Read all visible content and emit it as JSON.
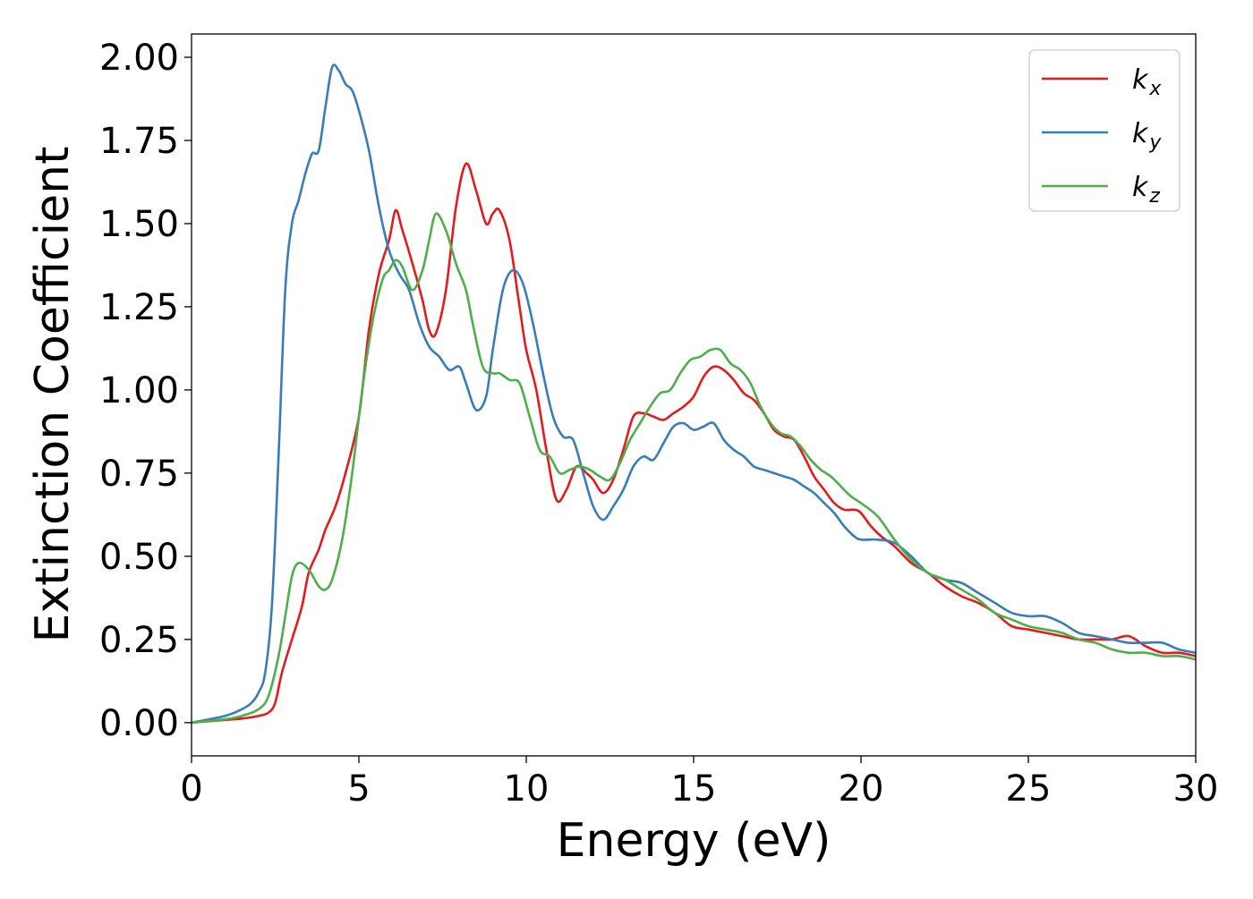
{
  "chart_data": {
    "type": "line",
    "xlabel": "Energy (eV)",
    "ylabel": "Extinction Coefficient",
    "xlim": [
      0,
      30
    ],
    "ylim": [
      -0.1,
      2.07
    ],
    "xticks": [
      0,
      5,
      10,
      15,
      20,
      25,
      30
    ],
    "yticks": [
      0.0,
      0.25,
      0.5,
      0.75,
      1.0,
      1.25,
      1.5,
      1.75,
      2.0
    ],
    "xtick_labels": [
      "0",
      "5",
      "10",
      "15",
      "20",
      "25",
      "30"
    ],
    "ytick_labels": [
      "0.00",
      "0.25",
      "0.50",
      "0.75",
      "1.00",
      "1.25",
      "1.50",
      "1.75",
      "2.00"
    ],
    "grid": false,
    "legend_position": "top-right",
    "series": [
      {
        "name": "k",
        "subscript": "x",
        "color": "#e41a1c",
        "x": [
          0,
          1,
          1.5,
          2,
          2.3,
          2.5,
          2.7,
          3.0,
          3.3,
          3.5,
          3.8,
          4.0,
          4.3,
          4.6,
          5.0,
          5.3,
          5.6,
          5.9,
          6.1,
          6.3,
          6.6,
          6.9,
          7.1,
          7.3,
          7.6,
          7.9,
          8.2,
          8.5,
          8.8,
          9.0,
          9.2,
          9.5,
          9.8,
          10.0,
          10.3,
          10.6,
          10.9,
          11.2,
          11.5,
          11.8,
          12.0,
          12.3,
          12.6,
          12.9,
          13.2,
          13.5,
          13.8,
          14.1,
          14.4,
          14.7,
          15.0,
          15.3,
          15.6,
          15.9,
          16.2,
          16.5,
          16.8,
          17.1,
          17.4,
          17.7,
          18.0,
          18.3,
          18.6,
          18.9,
          19.2,
          19.5,
          19.8,
          20.0,
          20.3,
          20.6,
          21.0,
          21.5,
          22.0,
          22.5,
          23.0,
          23.5,
          24.0,
          24.5,
          25.0,
          25.5,
          26.0,
          26.5,
          27.0,
          27.5,
          28.0,
          28.5,
          29.0,
          29.5,
          30.0
        ],
        "values": [
          0,
          0.008,
          0.012,
          0.02,
          0.03,
          0.06,
          0.15,
          0.25,
          0.35,
          0.45,
          0.52,
          0.58,
          0.65,
          0.75,
          0.92,
          1.18,
          1.35,
          1.45,
          1.54,
          1.48,
          1.38,
          1.27,
          1.18,
          1.17,
          1.3,
          1.55,
          1.68,
          1.6,
          1.5,
          1.53,
          1.54,
          1.45,
          1.25,
          1.12,
          1.0,
          0.82,
          0.67,
          0.7,
          0.77,
          0.75,
          0.73,
          0.69,
          0.73,
          0.82,
          0.92,
          0.93,
          0.92,
          0.91,
          0.93,
          0.95,
          0.98,
          1.04,
          1.07,
          1.06,
          1.03,
          0.99,
          0.97,
          0.93,
          0.88,
          0.86,
          0.85,
          0.8,
          0.74,
          0.7,
          0.66,
          0.64,
          0.64,
          0.63,
          0.59,
          0.56,
          0.53,
          0.48,
          0.45,
          0.41,
          0.38,
          0.36,
          0.33,
          0.29,
          0.28,
          0.27,
          0.26,
          0.25,
          0.25,
          0.25,
          0.26,
          0.23,
          0.21,
          0.21,
          0.2
        ]
      },
      {
        "name": "k",
        "subscript": "y",
        "color": "#377eb8",
        "x": [
          0,
          1,
          1.5,
          1.8,
          2.0,
          2.2,
          2.4,
          2.6,
          2.8,
          3.0,
          3.2,
          3.4,
          3.6,
          3.8,
          4.0,
          4.2,
          4.4,
          4.6,
          4.8,
          5.0,
          5.3,
          5.6,
          5.9,
          6.2,
          6.5,
          6.8,
          7.1,
          7.4,
          7.7,
          8.0,
          8.2,
          8.5,
          8.8,
          9.0,
          9.3,
          9.6,
          9.9,
          10.2,
          10.5,
          10.8,
          11.1,
          11.4,
          11.7,
          12.0,
          12.3,
          12.6,
          12.9,
          13.2,
          13.5,
          13.8,
          14.1,
          14.4,
          14.7,
          15.0,
          15.3,
          15.6,
          15.9,
          16.2,
          16.5,
          16.8,
          17.1,
          17.4,
          17.7,
          18.0,
          18.3,
          18.6,
          18.9,
          19.2,
          19.5,
          19.8,
          20.0,
          20.5,
          21.0,
          21.5,
          22.0,
          22.5,
          23.0,
          23.5,
          24.0,
          24.5,
          25.0,
          25.5,
          26.0,
          26.5,
          27.0,
          27.5,
          28.0,
          28.5,
          29.0,
          29.5,
          30.0
        ],
        "values": [
          0,
          0.02,
          0.04,
          0.06,
          0.09,
          0.15,
          0.35,
          0.8,
          1.3,
          1.5,
          1.57,
          1.65,
          1.71,
          1.72,
          1.85,
          1.97,
          1.96,
          1.92,
          1.9,
          1.84,
          1.72,
          1.55,
          1.42,
          1.35,
          1.3,
          1.2,
          1.13,
          1.1,
          1.06,
          1.07,
          1.02,
          0.94,
          0.98,
          1.12,
          1.3,
          1.36,
          1.32,
          1.2,
          1.05,
          0.92,
          0.86,
          0.85,
          0.75,
          0.65,
          0.61,
          0.65,
          0.7,
          0.77,
          0.8,
          0.79,
          0.84,
          0.89,
          0.9,
          0.88,
          0.89,
          0.9,
          0.85,
          0.82,
          0.8,
          0.77,
          0.76,
          0.75,
          0.74,
          0.73,
          0.71,
          0.69,
          0.66,
          0.63,
          0.59,
          0.56,
          0.55,
          0.55,
          0.54,
          0.5,
          0.45,
          0.43,
          0.42,
          0.39,
          0.36,
          0.33,
          0.32,
          0.32,
          0.3,
          0.27,
          0.26,
          0.25,
          0.24,
          0.24,
          0.24,
          0.22,
          0.21
        ]
      },
      {
        "name": "k",
        "subscript": "z",
        "color": "#4daf4a",
        "x": [
          0,
          1,
          1.5,
          2.0,
          2.3,
          2.6,
          2.8,
          3.0,
          3.2,
          3.5,
          3.8,
          4.0,
          4.2,
          4.5,
          4.8,
          5.1,
          5.4,
          5.7,
          5.9,
          6.1,
          6.3,
          6.6,
          6.9,
          7.1,
          7.3,
          7.6,
          7.9,
          8.2,
          8.4,
          8.7,
          9.0,
          9.2,
          9.5,
          9.8,
          10.1,
          10.4,
          10.7,
          11.0,
          11.3,
          11.6,
          11.9,
          12.2,
          12.5,
          12.8,
          13.1,
          13.4,
          13.7,
          14.0,
          14.3,
          14.6,
          14.9,
          15.2,
          15.5,
          15.8,
          16.1,
          16.4,
          16.7,
          17.0,
          17.3,
          17.6,
          17.9,
          18.2,
          18.5,
          18.8,
          19.1,
          19.4,
          19.7,
          20.0,
          20.5,
          21.0,
          21.5,
          22.0,
          22.5,
          23.0,
          23.5,
          24.0,
          24.5,
          25.0,
          25.5,
          26.0,
          26.5,
          27.0,
          27.5,
          28.0,
          28.5,
          29.0,
          29.5,
          30.0
        ],
        "values": [
          0,
          0.01,
          0.02,
          0.04,
          0.08,
          0.2,
          0.32,
          0.44,
          0.48,
          0.46,
          0.41,
          0.4,
          0.43,
          0.55,
          0.75,
          1.0,
          1.2,
          1.33,
          1.36,
          1.39,
          1.37,
          1.3,
          1.36,
          1.45,
          1.53,
          1.48,
          1.38,
          1.3,
          1.2,
          1.07,
          1.05,
          1.05,
          1.03,
          1.02,
          0.92,
          0.82,
          0.8,
          0.75,
          0.76,
          0.77,
          0.76,
          0.74,
          0.73,
          0.78,
          0.85,
          0.9,
          0.95,
          0.99,
          1.0,
          1.05,
          1.09,
          1.1,
          1.12,
          1.12,
          1.08,
          1.06,
          1.02,
          0.95,
          0.9,
          0.87,
          0.86,
          0.83,
          0.79,
          0.76,
          0.74,
          0.71,
          0.68,
          0.66,
          0.62,
          0.55,
          0.49,
          0.45,
          0.43,
          0.4,
          0.37,
          0.33,
          0.31,
          0.29,
          0.28,
          0.27,
          0.25,
          0.24,
          0.22,
          0.21,
          0.21,
          0.2,
          0.2,
          0.19
        ]
      }
    ]
  }
}
